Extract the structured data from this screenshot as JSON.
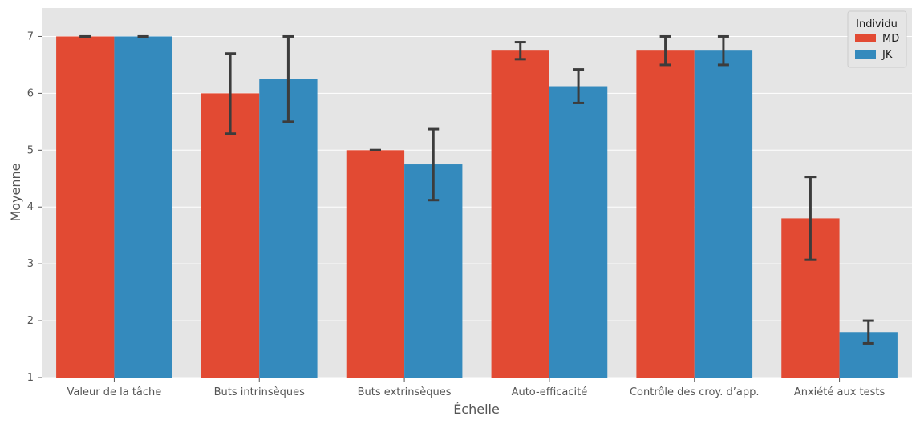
{
  "chart_data": {
    "type": "bar",
    "xlabel": "Échelle",
    "ylabel": "Moyenne",
    "ylim": [
      1,
      7.5
    ],
    "yticks": [
      1,
      2,
      3,
      4,
      5,
      6,
      7
    ],
    "grid": true,
    "legend": {
      "title": "Individu",
      "placement": "top-right"
    },
    "categories": [
      "Valeur de la tâche",
      "Buts intrinsèques",
      "Buts extrinsèques",
      "Auto-efficacité",
      "Contrôle des croy. d’app.",
      "Anxiété aux tests"
    ],
    "series": [
      {
        "name": "MD",
        "color": "#E24A33",
        "values": [
          7.0,
          6.0,
          5.0,
          6.75,
          6.75,
          3.8
        ],
        "err_low": [
          7.0,
          5.29,
          5.0,
          6.6,
          6.5,
          3.07
        ],
        "err_high": [
          7.0,
          6.7,
          5.0,
          6.9,
          7.0,
          4.53
        ]
      },
      {
        "name": "JK",
        "color": "#348ABD",
        "values": [
          7.0,
          6.25,
          4.75,
          6.125,
          6.75,
          1.8
        ],
        "err_low": [
          7.0,
          5.5,
          4.12,
          5.83,
          6.5,
          1.6
        ],
        "err_high": [
          7.0,
          7.0,
          5.37,
          6.42,
          7.0,
          2.0
        ]
      }
    ]
  }
}
